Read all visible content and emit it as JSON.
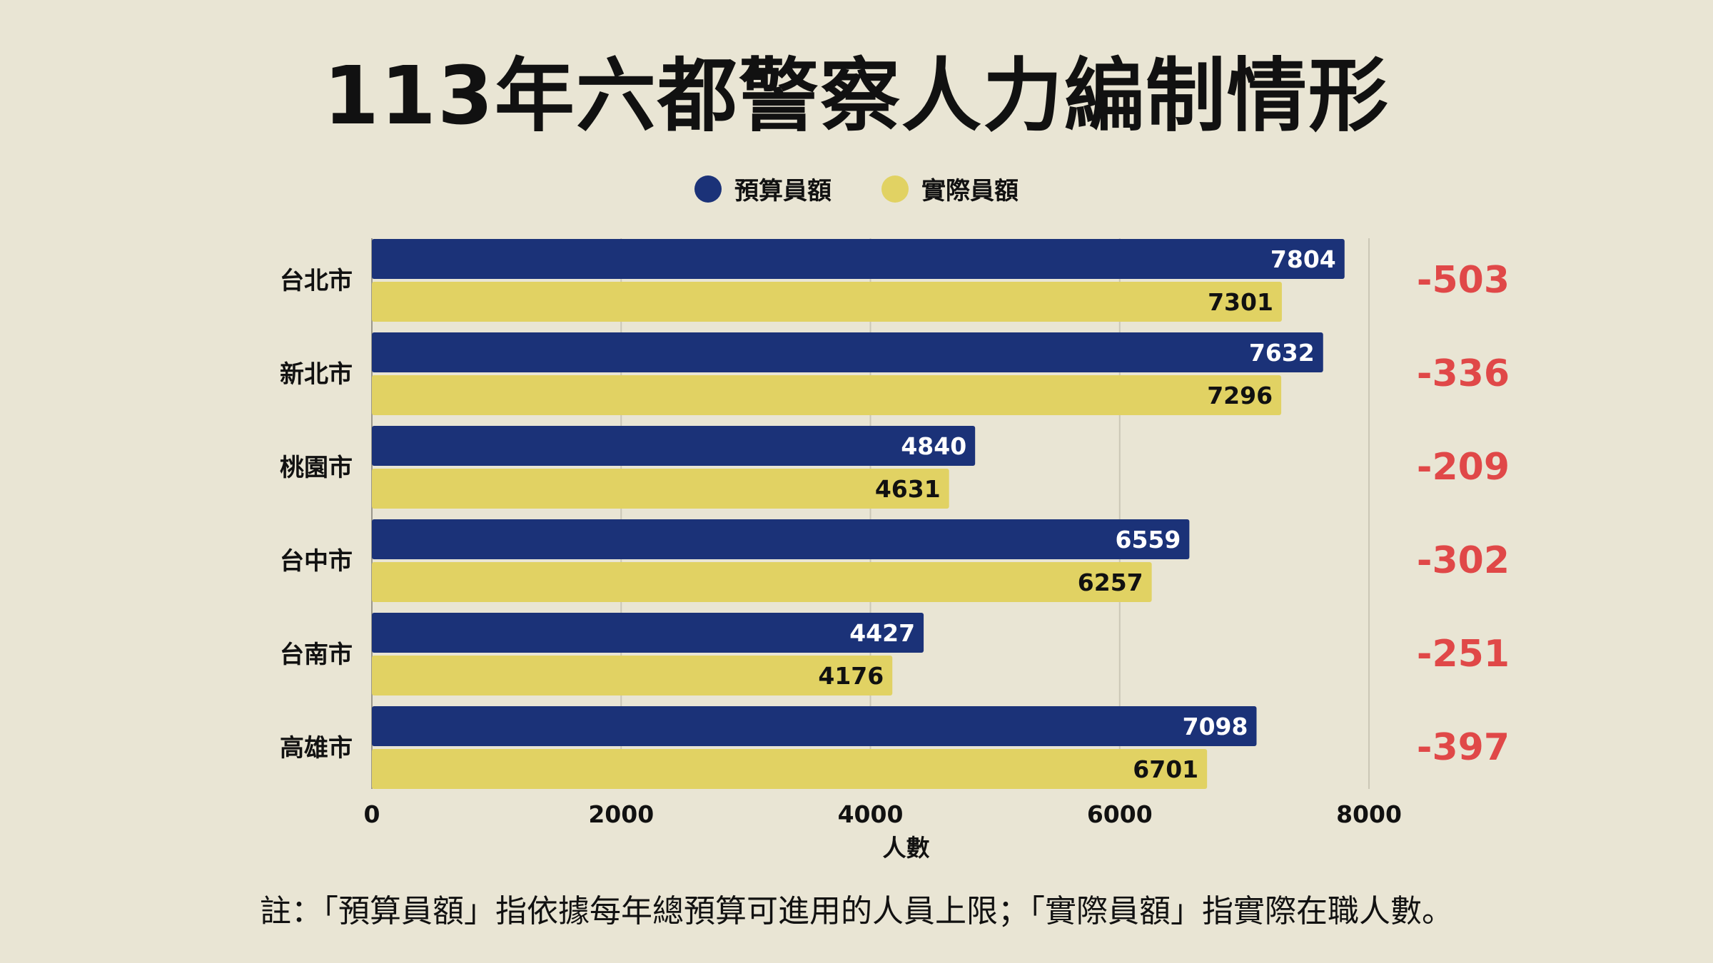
{
  "title": "113年六都警察人力編制情形",
  "note": "註：「預算員額」指依據每年總預算可進用的人員上限；「實際員額」指實際在職人數。",
  "colors": {
    "background": "#e9e5d4",
    "budget": "#1b3278",
    "actual": "#e1d263",
    "difference": "#e04848"
  },
  "chart_data": {
    "type": "bar",
    "orientation": "horizontal",
    "categories": [
      "台北市",
      "新北市",
      "桃園市",
      "台中市",
      "台南市",
      "高雄市"
    ],
    "series": [
      {
        "name": "預算員額",
        "values": [
          7804,
          7632,
          4840,
          6559,
          4427,
          7098
        ]
      },
      {
        "name": "實際員額",
        "values": [
          7301,
          7296,
          4631,
          6257,
          4176,
          6701
        ]
      }
    ],
    "differences": [
      "-503",
      "-336",
      "-209",
      "-302",
      "-251",
      "-397"
    ],
    "xlabel": "人數",
    "xlim": [
      0,
      8000
    ],
    "xticks": [
      "0",
      "2000",
      "4000",
      "6000",
      "8000"
    ],
    "legend_position": "top-center",
    "grid": true
  }
}
